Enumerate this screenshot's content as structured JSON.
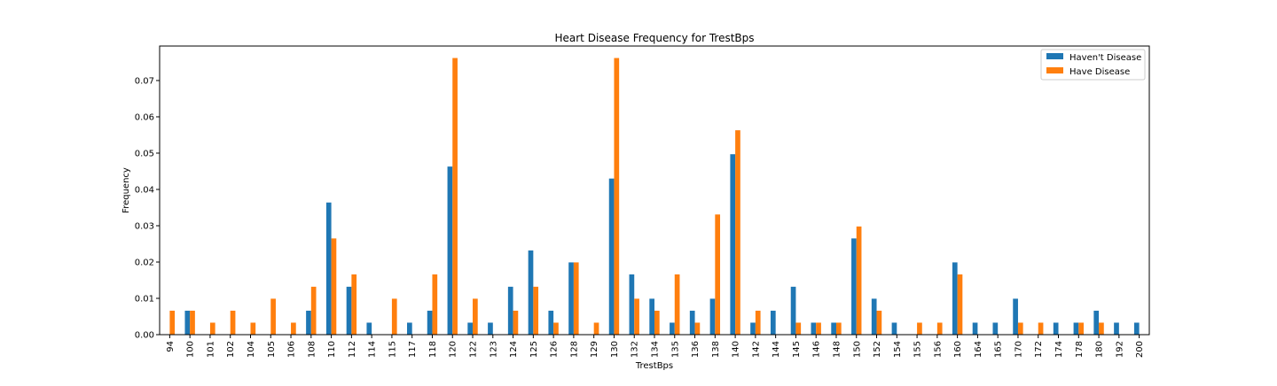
{
  "chart_data": {
    "type": "bar",
    "title": "Heart Disease Frequency for TrestBps",
    "xlabel": "TrestBps",
    "ylabel": "Frequency",
    "ylim": [
      0,
      0.0795
    ],
    "yticks": [
      0.0,
      0.01,
      0.02,
      0.03,
      0.04,
      0.05,
      0.06,
      0.07
    ],
    "ytick_labels": [
      "0.00",
      "0.01",
      "0.02",
      "0.03",
      "0.04",
      "0.05",
      "0.06",
      "0.07"
    ],
    "grid": false,
    "legend_position": "top-right",
    "categories": [
      "94",
      "100",
      "101",
      "102",
      "104",
      "105",
      "106",
      "108",
      "110",
      "112",
      "114",
      "115",
      "117",
      "118",
      "120",
      "122",
      "123",
      "124",
      "125",
      "126",
      "128",
      "129",
      "130",
      "132",
      "134",
      "135",
      "136",
      "138",
      "140",
      "142",
      "144",
      "145",
      "146",
      "148",
      "150",
      "152",
      "154",
      "155",
      "156",
      "160",
      "164",
      "165",
      "170",
      "172",
      "174",
      "178",
      "180",
      "192",
      "200"
    ],
    "series": [
      {
        "name": "Haven't Disease",
        "color": "#1f77b4",
        "values": [
          0,
          0.0066,
          0,
          0,
          0,
          0,
          0,
          0.0066,
          0.0364,
          0.0132,
          0.0033,
          0,
          0.0033,
          0.0066,
          0.0463,
          0.0033,
          0.0033,
          0.0132,
          0.0232,
          0.0066,
          0.0199,
          0,
          0.043,
          0.0166,
          0.0099,
          0.0033,
          0.0066,
          0.0099,
          0.0497,
          0.0033,
          0.0066,
          0.0132,
          0.0033,
          0.0033,
          0.0265,
          0.0099,
          0.0033,
          0,
          0,
          0.0199,
          0.0033,
          0.0033,
          0.0099,
          0,
          0.0033,
          0.0033,
          0.0066,
          0.0033,
          0.0033
        ]
      },
      {
        "name": "Have Disease",
        "color": "#ff7f0e",
        "values": [
          0.0066,
          0.0066,
          0.0033,
          0.0066,
          0.0033,
          0.0099,
          0.0033,
          0.0132,
          0.0265,
          0.0166,
          0,
          0.0099,
          0,
          0.0166,
          0.0762,
          0.0099,
          0,
          0.0066,
          0.0132,
          0.0033,
          0.0199,
          0.0033,
          0.0762,
          0.0099,
          0.0066,
          0.0166,
          0.0033,
          0.0331,
          0.0563,
          0.0066,
          0,
          0.0033,
          0.0033,
          0.0033,
          0.0298,
          0.0066,
          0,
          0.0033,
          0.0033,
          0.0166,
          0,
          0,
          0.0033,
          0.0033,
          0,
          0.0033,
          0.0033,
          0,
          0
        ]
      }
    ]
  }
}
